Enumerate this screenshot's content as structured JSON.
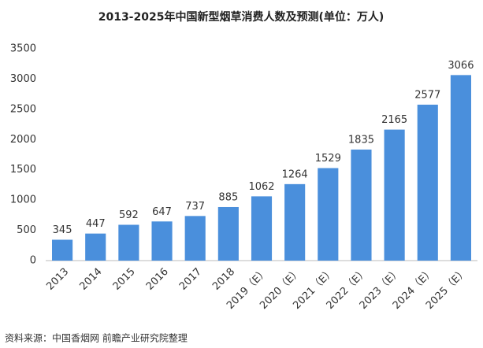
{
  "chart_data": {
    "type": "bar",
    "title": "2013-2025年中国新型烟草消费人数及预测(单位：万人)",
    "source": "资料来源：中国香烟网 前瞻产业研究院整理",
    "categories": [
      "2013",
      "2014",
      "2015",
      "2016",
      "2017",
      "2018",
      "2019（E）",
      "2020（E）",
      "2021（E）",
      "2022（E）",
      "2023（E）",
      "2024（E）",
      "2025（E）"
    ],
    "values": [
      345,
      447,
      592,
      647,
      737,
      885,
      1062,
      1264,
      1529,
      1835,
      2165,
      2577,
      3066
    ],
    "color": "#4a8fdc",
    "ylim": [
      0,
      3500
    ],
    "yticks": [
      0,
      500,
      1000,
      1500,
      2000,
      2500,
      3000,
      3500
    ],
    "grid": false
  }
}
